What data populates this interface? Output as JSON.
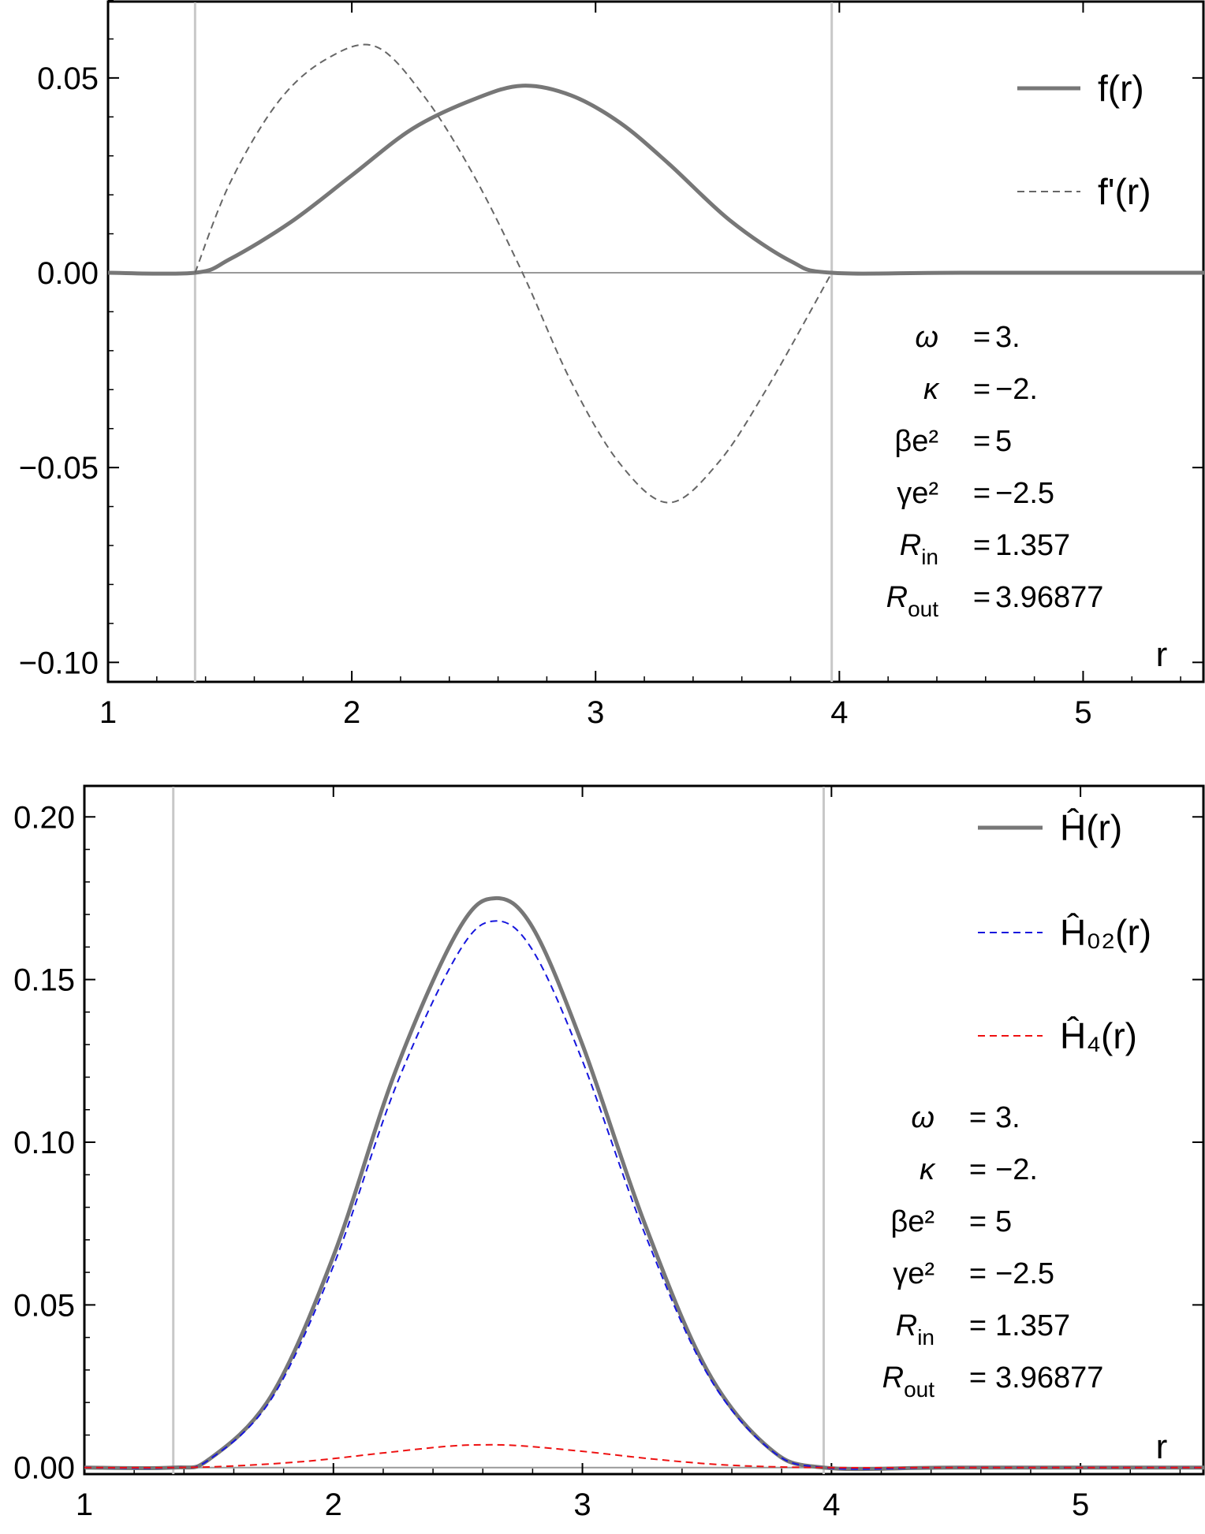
{
  "chart_data": [
    {
      "type": "line",
      "xlabel": "r",
      "ylabel": "",
      "xlim": [
        1,
        5.5
      ],
      "ylim": [
        -0.105,
        0.07
      ],
      "x_ticks": [
        "1",
        "2",
        "3",
        "4",
        "5"
      ],
      "y_ticks": [
        "0.05",
        "0.00",
        "−0.05",
        "−0.10"
      ],
      "y_tick_values": [
        0.05,
        0.0,
        -0.05,
        -0.1
      ],
      "vlines": [
        1.357,
        3.96877
      ],
      "legend": [
        "f(r)",
        "f'(r)"
      ],
      "legend_position": "top-right",
      "series": [
        {
          "name": "f(r)",
          "style": "solid",
          "color": "#777777",
          "x": [
            1,
            1.357,
            1.5,
            1.75,
            2.0,
            2.25,
            2.5,
            2.7,
            2.9,
            3.1,
            3.3,
            3.55,
            3.8,
            3.96877,
            4.5,
            5.5
          ],
          "y": [
            0,
            0,
            0.0035,
            0.013,
            0.025,
            0.037,
            0.0445,
            0.048,
            0.0455,
            0.0385,
            0.028,
            0.0135,
            0.003,
            0,
            0,
            0
          ]
        },
        {
          "name": "f'(r)",
          "style": "dashed",
          "color": "#666666",
          "x": [
            1.357,
            1.5,
            1.7,
            1.9,
            2.1,
            2.3,
            2.5,
            2.7,
            2.9,
            3.1,
            3.3,
            3.5,
            3.7,
            3.96877
          ],
          "y": [
            0,
            0.023,
            0.044,
            0.055,
            0.058,
            0.045,
            0.025,
            0.0,
            -0.028,
            -0.049,
            -0.059,
            -0.049,
            -0.03,
            0
          ]
        }
      ],
      "params": [
        {
          "sym": "ω",
          "sub": "",
          "eq": "=",
          "val": "3."
        },
        {
          "sym": "κ",
          "sub": "",
          "eq": "=",
          "val": "−2."
        },
        {
          "sym": "βe²",
          "sub": "",
          "eq": "=",
          "val": "5"
        },
        {
          "sym": "γe²",
          "sub": "",
          "eq": "=",
          "val": "−2.5"
        },
        {
          "sym": "R",
          "sub": "in",
          "eq": "=",
          "val": "1.357"
        },
        {
          "sym": "R",
          "sub": "out",
          "eq": "=",
          "val": "3.96877"
        }
      ]
    },
    {
      "type": "line",
      "xlabel": "r",
      "ylabel": "",
      "xlim": [
        1,
        5.5
      ],
      "ylim": [
        -0.002,
        0.21
      ],
      "x_ticks": [
        "1",
        "2",
        "3",
        "4",
        "5"
      ],
      "y_ticks": [
        "0.20",
        "0.15",
        "0.10",
        "0.05",
        "0.00"
      ],
      "y_tick_values": [
        0.2,
        0.15,
        0.1,
        0.05,
        0.0
      ],
      "vlines": [
        1.357,
        3.96877
      ],
      "legend": [
        "Ĥ(r)",
        "Ĥ₀₂(r)",
        "Ĥ₄(r)"
      ],
      "legend_position": "top-right",
      "series": [
        {
          "name": "H(r)",
          "style": "solid",
          "color": "#777777",
          "x": [
            1,
            1.357,
            1.5,
            1.75,
            2.0,
            2.25,
            2.5,
            2.65,
            2.8,
            3.0,
            3.25,
            3.5,
            3.75,
            3.96877,
            4.5,
            5.5
          ],
          "y": [
            0,
            0,
            0.0025,
            0.022,
            0.065,
            0.122,
            0.165,
            0.175,
            0.166,
            0.13,
            0.075,
            0.03,
            0.006,
            0,
            0,
            0
          ]
        },
        {
          "name": "H02(r)",
          "style": "dashed",
          "color": "#1515dd",
          "x": [
            1,
            1.357,
            1.5,
            1.75,
            2.0,
            2.25,
            2.5,
            2.65,
            2.8,
            3.0,
            3.25,
            3.5,
            3.75,
            3.96877,
            4.5,
            5.5
          ],
          "y": [
            0,
            0,
            0.0024,
            0.021,
            0.062,
            0.117,
            0.158,
            0.168,
            0.159,
            0.125,
            0.072,
            0.029,
            0.0058,
            0,
            0,
            0
          ]
        },
        {
          "name": "H4(r)",
          "style": "dashed",
          "color": "#ee1111",
          "x": [
            1,
            1.357,
            1.6,
            1.9,
            2.2,
            2.45,
            2.6,
            2.75,
            3.0,
            3.3,
            3.6,
            3.96877,
            4.5,
            5.5
          ],
          "y": [
            0,
            0,
            0.0005,
            0.002,
            0.0045,
            0.0065,
            0.007,
            0.0067,
            0.005,
            0.0025,
            0.0007,
            0,
            0,
            0
          ]
        }
      ],
      "params": [
        {
          "sym": "ω",
          "sub": "",
          "eq": "=",
          "val": "3."
        },
        {
          "sym": "κ",
          "sub": "",
          "eq": "=",
          "val": "−2."
        },
        {
          "sym": "βe²",
          "sub": "",
          "eq": "=",
          "val": "5"
        },
        {
          "sym": "γe²",
          "sub": "",
          "eq": "=",
          "val": "−2.5"
        },
        {
          "sym": "R",
          "sub": "in",
          "eq": "=",
          "val": "1.357"
        },
        {
          "sym": "R",
          "sub": "out",
          "eq": "=",
          "val": "3.96877"
        }
      ]
    }
  ]
}
